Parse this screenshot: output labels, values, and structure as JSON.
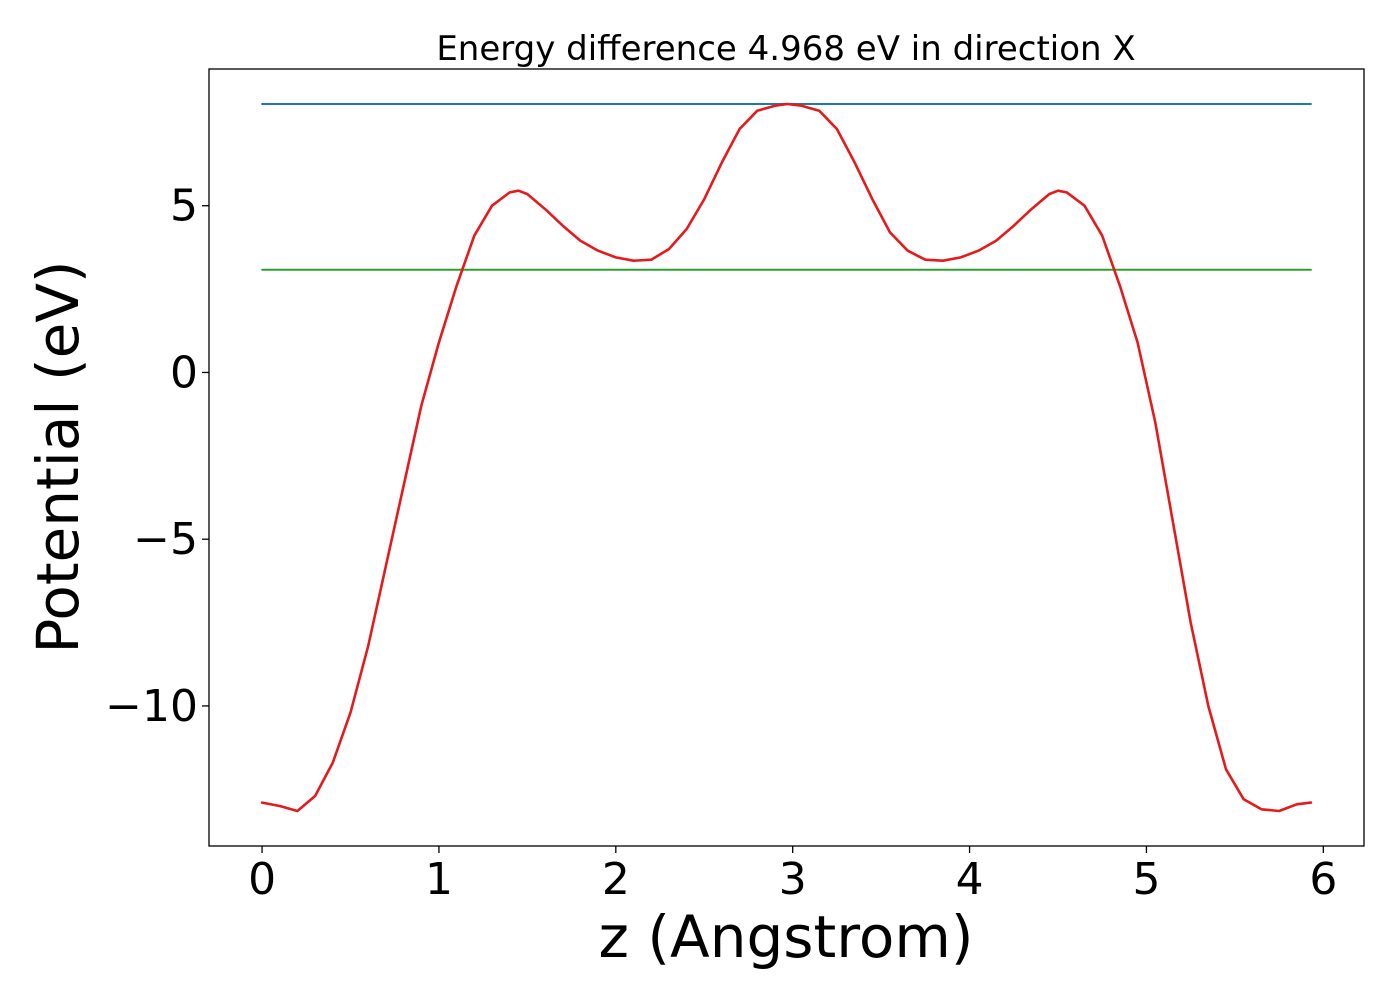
{
  "chart_data": {
    "type": "line",
    "title": "Energy difference 4.968 eV in direction X",
    "xlabel": "z (Angstrom)",
    "ylabel": "Potential (eV)",
    "xlim": [
      -0.3,
      6.23
    ],
    "ylim": [
      -14.2,
      9.1
    ],
    "xticks": [
      0,
      1,
      2,
      3,
      4,
      5,
      6
    ],
    "xtick_labels": [
      "0",
      "1",
      "2",
      "3",
      "4",
      "5",
      "6"
    ],
    "yticks": [
      -10,
      -5,
      0,
      5
    ],
    "ytick_labels": [
      "−10",
      "−5",
      "0",
      "5"
    ],
    "grid": false,
    "legend": "none",
    "series": [
      {
        "color": "#1f77b4",
        "x": [
          0,
          5.93
        ],
        "y": [
          8.05,
          8.05
        ]
      },
      {
        "color": "#2ca02c",
        "x": [
          0,
          5.93
        ],
        "y": [
          3.08,
          3.08
        ]
      },
      {
        "color": "#e41a1c",
        "x": [
          0,
          0.1,
          0.2,
          0.3,
          0.4,
          0.5,
          0.6,
          0.7,
          0.8,
          0.9,
          1.0,
          1.1,
          1.2,
          1.3,
          1.4,
          1.45,
          1.5,
          1.6,
          1.7,
          1.8,
          1.9,
          2.0,
          2.1,
          2.2,
          2.3,
          2.4,
          2.5,
          2.6,
          2.7,
          2.8,
          2.9,
          2.97,
          3.05,
          3.15,
          3.25,
          3.35,
          3.45,
          3.55,
          3.65,
          3.75,
          3.85,
          3.95,
          4.05,
          4.15,
          4.25,
          4.35,
          4.45,
          4.5,
          4.55,
          4.65,
          4.75,
          4.85,
          4.95,
          5.05,
          5.15,
          5.25,
          5.35,
          5.45,
          5.55,
          5.65,
          5.75,
          5.85,
          5.93
        ],
        "y": [
          -12.9,
          -13.0,
          -13.15,
          -12.7,
          -11.7,
          -10.2,
          -8.2,
          -5.8,
          -3.4,
          -1.0,
          0.9,
          2.6,
          4.1,
          5.0,
          5.4,
          5.45,
          5.35,
          4.9,
          4.4,
          3.95,
          3.65,
          3.45,
          3.35,
          3.38,
          3.7,
          4.3,
          5.2,
          6.3,
          7.3,
          7.85,
          8.0,
          8.05,
          8.0,
          7.85,
          7.3,
          6.3,
          5.2,
          4.2,
          3.65,
          3.38,
          3.35,
          3.45,
          3.65,
          3.95,
          4.4,
          4.9,
          5.35,
          5.45,
          5.4,
          5.0,
          4.1,
          2.6,
          0.9,
          -1.5,
          -4.5,
          -7.5,
          -10.0,
          -11.9,
          -12.8,
          -13.1,
          -13.15,
          -12.95,
          -12.9
        ]
      }
    ]
  }
}
